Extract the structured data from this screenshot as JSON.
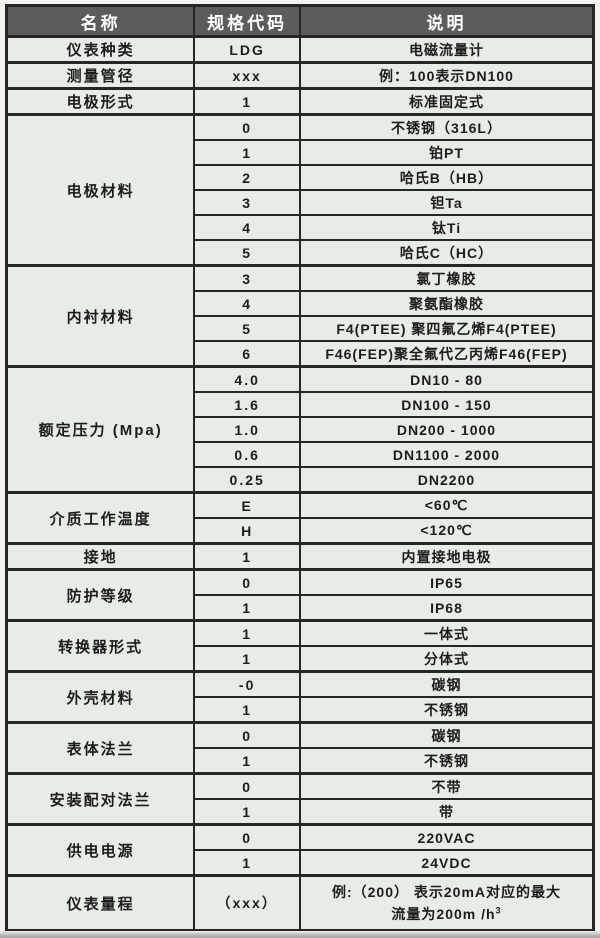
{
  "colors": {
    "page_bg": "#f2f4ef",
    "header_bg": "#5c5c5c",
    "header_fg": "#ffffff",
    "cell_bg": "#e8ece6",
    "cell_fg": "#1c1c1c",
    "border": "#262626"
  },
  "table": {
    "headers": [
      "名称",
      "规格代码",
      "说明"
    ],
    "groups": [
      {
        "name": "仪表种类",
        "rows": [
          {
            "code": "LDG",
            "desc": "电磁流量计"
          }
        ]
      },
      {
        "name": "测量管径",
        "rows": [
          {
            "code": "xxx",
            "desc": "例：100表示DN100"
          }
        ]
      },
      {
        "name": "电极形式",
        "rows": [
          {
            "code": "1",
            "desc": "标准固定式"
          }
        ]
      },
      {
        "name": "电极材料",
        "rows": [
          {
            "code": "0",
            "desc": "不锈钢（316L）"
          },
          {
            "code": "1",
            "desc": "铂PT"
          },
          {
            "code": "2",
            "desc": "哈氏B（HB）"
          },
          {
            "code": "3",
            "desc": "钽Ta"
          },
          {
            "code": "4",
            "desc": "钛Ti"
          },
          {
            "code": "5",
            "desc": "哈氏C（HC）"
          }
        ]
      },
      {
        "name": "内衬材料",
        "rows": [
          {
            "code": "3",
            "desc": "氯丁橡胶"
          },
          {
            "code": "4",
            "desc": "聚氨酯橡胶"
          },
          {
            "code": "5",
            "desc": "F4(PTEE) 聚四氟乙烯F4(PTEE)"
          },
          {
            "code": "6",
            "desc": "F46(FEP)聚全氟代乙丙烯F46(FEP)"
          }
        ]
      },
      {
        "name": "额定压力 (Mpa)",
        "rows": [
          {
            "code": "4.0",
            "desc": "DN10 - 80"
          },
          {
            "code": "1.6",
            "desc": "DN100 - 150"
          },
          {
            "code": "1.0",
            "desc": "DN200 - 1000"
          },
          {
            "code": "0.6",
            "desc": "DN1100 - 2000"
          },
          {
            "code": "0.25",
            "desc": "DN2200"
          }
        ]
      },
      {
        "name": "介质工作温度",
        "rows": [
          {
            "code": "E",
            "desc": "<60℃"
          },
          {
            "code": "H",
            "desc": "<120℃"
          }
        ]
      },
      {
        "name": "接地",
        "rows": [
          {
            "code": "1",
            "desc": "内置接地电极"
          }
        ]
      },
      {
        "name": "防护等级",
        "rows": [
          {
            "code": "0",
            "desc": "IP65"
          },
          {
            "code": "1",
            "desc": "IP68"
          }
        ]
      },
      {
        "name": "转换器形式",
        "rows": [
          {
            "code": "1",
            "desc": "一体式"
          },
          {
            "code": "1",
            "desc": "分体式"
          }
        ]
      },
      {
        "name": "外壳材料",
        "rows": [
          {
            "code": "-0",
            "desc": "碳钢"
          },
          {
            "code": "1",
            "desc": "不锈钢"
          }
        ]
      },
      {
        "name": "表体法兰",
        "rows": [
          {
            "code": "0",
            "desc": "碳钢"
          },
          {
            "code": "1",
            "desc": "不锈钢"
          }
        ]
      },
      {
        "name": "安装配对法兰",
        "rows": [
          {
            "code": "0",
            "desc": "不带"
          },
          {
            "code": "1",
            "desc": "带"
          }
        ]
      },
      {
        "name": "供电电源",
        "rows": [
          {
            "code": "0",
            "desc": "220VAC"
          },
          {
            "code": "1",
            "desc": "24VDC"
          }
        ]
      },
      {
        "name": "仪表量程",
        "rows": [
          {
            "code": "（xxx）",
            "desc_lines": [
              "例:（200） 表示20mA对应的最大",
              "流量为200m /h"
            ],
            "desc_sup": "3"
          }
        ]
      }
    ]
  }
}
